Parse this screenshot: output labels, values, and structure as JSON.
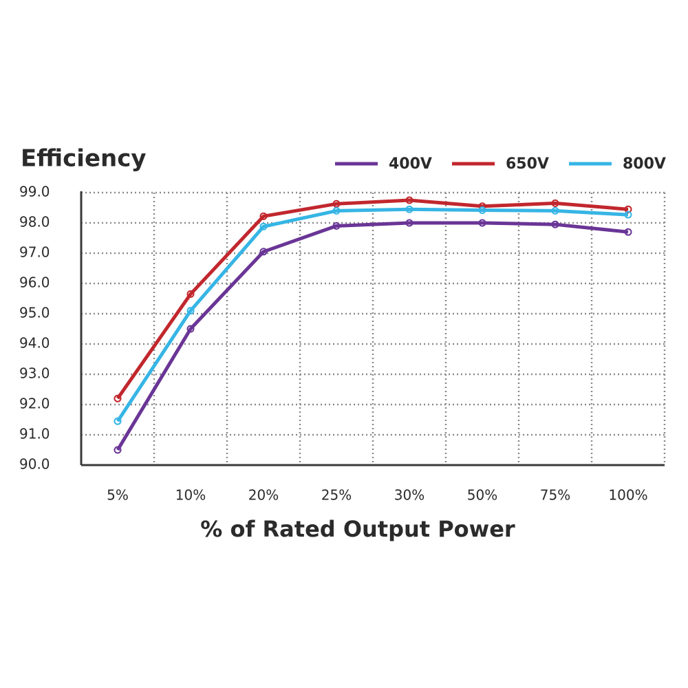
{
  "chart_data": {
    "type": "line",
    "title": "Efficiency",
    "x_label": "% of Rated Output Power",
    "categories": [
      "5%",
      "10%",
      "20%",
      "25%",
      "30%",
      "50%",
      "75%",
      "100%"
    ],
    "series": [
      {
        "name": "400V",
        "color": "#6a3596",
        "values": [
          90.5,
          94.5,
          97.05,
          97.9,
          98.0,
          98.0,
          97.95,
          97.7
        ]
      },
      {
        "name": "650V",
        "color": "#c1272d",
        "values": [
          92.2,
          95.65,
          98.22,
          98.63,
          98.75,
          98.55,
          98.65,
          98.45
        ]
      },
      {
        "name": "800V",
        "color": "#36b5e5",
        "values": [
          91.45,
          95.1,
          97.88,
          98.4,
          98.45,
          98.42,
          98.4,
          98.27
        ]
      }
    ],
    "ylim": [
      90,
      99
    ],
    "yticks": [
      {
        "value": 90,
        "label": "90.0"
      },
      {
        "value": 91,
        "label": "91.0"
      },
      {
        "value": 92,
        "label": "92.0"
      },
      {
        "value": 93,
        "label": "93.0"
      },
      {
        "value": 94,
        "label": "94.0"
      },
      {
        "value": 95,
        "label": "95.0"
      },
      {
        "value": 96,
        "label": "96.0"
      },
      {
        "value": 97,
        "label": "97.0"
      },
      {
        "value": 98,
        "label": "98.0"
      },
      {
        "value": 99,
        "label": "99.0"
      }
    ],
    "grid": true
  }
}
